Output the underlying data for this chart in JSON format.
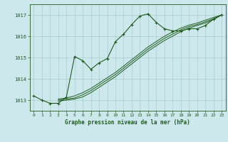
{
  "background_color": "#cce8ec",
  "grid_color": "#aacccc",
  "line_color": "#1e5c1e",
  "title": "Graphe pression niveau de la mer (hPa)",
  "xlim": [
    -0.5,
    23.5
  ],
  "ylim": [
    1012.5,
    1017.5
  ],
  "yticks": [
    1013,
    1014,
    1015,
    1016,
    1017
  ],
  "xticks": [
    0,
    1,
    2,
    3,
    4,
    5,
    6,
    7,
    8,
    9,
    10,
    11,
    12,
    13,
    14,
    15,
    16,
    17,
    18,
    19,
    20,
    21,
    22,
    23
  ],
  "series1_x": [
    0,
    1,
    2,
    3,
    4,
    5,
    6,
    7,
    8,
    9,
    10,
    11,
    12,
    13,
    14,
    15,
    16,
    17,
    18,
    19,
    20,
    21,
    22,
    23
  ],
  "series1_y": [
    1013.2,
    1013.0,
    1012.85,
    1012.85,
    1013.15,
    1015.05,
    1014.85,
    1014.45,
    1014.75,
    1014.95,
    1015.75,
    1016.1,
    1016.55,
    1016.95,
    1017.05,
    1016.65,
    1016.35,
    1016.25,
    1016.25,
    1016.35,
    1016.35,
    1016.5,
    1016.8,
    1017.0
  ],
  "series2_x": [
    3,
    4,
    5,
    6,
    7,
    8,
    9,
    10,
    11,
    12,
    13,
    14,
    15,
    16,
    17,
    18,
    19,
    20,
    21,
    22,
    23
  ],
  "series2_y": [
    1013.05,
    1013.1,
    1013.2,
    1013.35,
    1013.55,
    1013.8,
    1014.05,
    1014.3,
    1014.6,
    1014.9,
    1015.2,
    1015.5,
    1015.75,
    1016.0,
    1016.2,
    1016.38,
    1016.52,
    1016.62,
    1016.75,
    1016.88,
    1017.0
  ],
  "series3_x": [
    3,
    4,
    5,
    6,
    7,
    8,
    9,
    10,
    11,
    12,
    13,
    14,
    15,
    16,
    17,
    18,
    19,
    20,
    21,
    22,
    23
  ],
  "series3_y": [
    1013.0,
    1013.05,
    1013.1,
    1013.25,
    1013.45,
    1013.7,
    1013.95,
    1014.2,
    1014.5,
    1014.8,
    1015.1,
    1015.4,
    1015.65,
    1015.9,
    1016.1,
    1016.3,
    1016.45,
    1016.55,
    1016.68,
    1016.82,
    1017.0
  ],
  "series4_x": [
    3,
    4,
    5,
    6,
    7,
    8,
    9,
    10,
    11,
    12,
    13,
    14,
    15,
    16,
    17,
    18,
    19,
    20,
    21,
    22,
    23
  ],
  "series4_y": [
    1012.95,
    1013.0,
    1013.05,
    1013.15,
    1013.35,
    1013.6,
    1013.85,
    1014.1,
    1014.4,
    1014.7,
    1015.0,
    1015.3,
    1015.55,
    1015.8,
    1016.0,
    1016.22,
    1016.38,
    1016.5,
    1016.62,
    1016.78,
    1017.0
  ]
}
